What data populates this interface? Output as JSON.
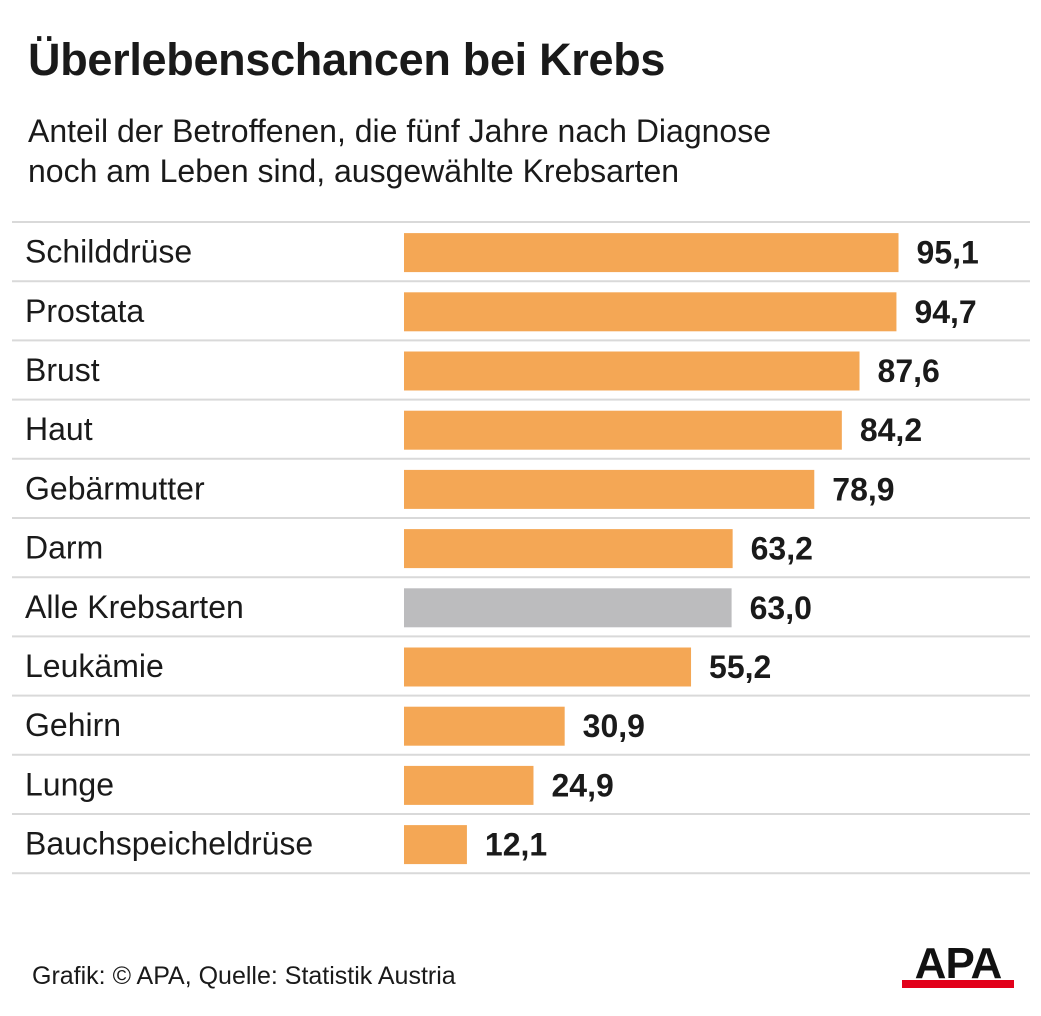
{
  "title": "Überlebenschancen bei Krebs",
  "subtitle_lines": [
    "Anteil der Betroffenen, die fünf Jahre nach Diagnose",
    "noch am Leben sind, ausgewählte Krebsarten"
  ],
  "source": "Grafik: © APA, Quelle: Statistik Austria",
  "logo_text": "APA",
  "colors": {
    "bar": "#f4a755",
    "highlight_bar": "#bcbcbe",
    "grid": "#d9d9d9",
    "text": "#1a1a1a",
    "logo_red": "#e2001a"
  },
  "chart_data": {
    "type": "bar",
    "orientation": "horizontal",
    "categories": [
      "Schilddrüse",
      "Prostata",
      "Brust",
      "Haut",
      "Gebärmutter",
      "Darm",
      "Alle Krebsarten",
      "Leukämie",
      "Gehirn",
      "Lunge",
      "Bauchspeicheldrüse"
    ],
    "value_labels": [
      "95,1",
      "94,7",
      "87,6",
      "84,2",
      "78,9",
      "63,2",
      "63,0",
      "55,2",
      "30,9",
      "24,9",
      "12,1"
    ],
    "series": [
      {
        "values": [
          95.1,
          94.7,
          87.6,
          84.2,
          78.9,
          63.2,
          63.0,
          55.2,
          30.9,
          24.9,
          12.1
        ]
      }
    ],
    "highlight_category": "Alle Krebsarten",
    "xlim": [
      0,
      100
    ],
    "grid": false,
    "legend": "none"
  }
}
